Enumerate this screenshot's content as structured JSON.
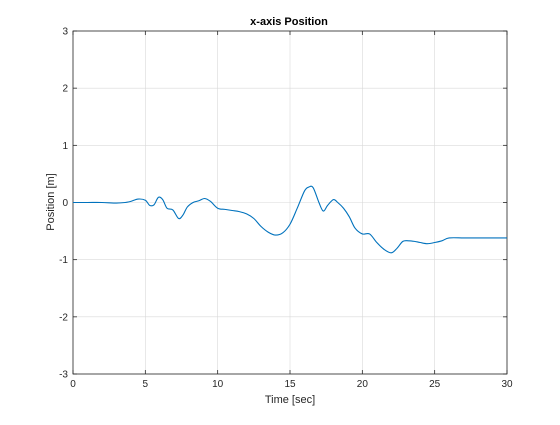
{
  "chart_data": {
    "type": "line",
    "title": "x-axis Position",
    "xlabel": "Time [sec]",
    "ylabel": "Position [m]",
    "xlim": [
      0,
      30
    ],
    "ylim": [
      -3,
      3
    ],
    "xticks": [
      "0",
      "5",
      "10",
      "15",
      "20",
      "25",
      "30"
    ],
    "yticks": [
      "-3",
      "-2",
      "-1",
      "0",
      "1",
      "2",
      "3"
    ],
    "grid": true,
    "line_color": "#0072BD",
    "series": [
      {
        "x": [
          0,
          1,
          2,
          3,
          3.6,
          4,
          4.5,
          5,
          5.3,
          5.6,
          5.9,
          6.2,
          6.5,
          6.9,
          7.3,
          7.6,
          7.9,
          8.3,
          8.7,
          9.1,
          9.5,
          10,
          10.5,
          11,
          11.5,
          12,
          12.5,
          13,
          13.5,
          14,
          14.5,
          15,
          15.5,
          16,
          16.3,
          16.6,
          17,
          17.3,
          17.6,
          18,
          18.3,
          18.7,
          19.1,
          19.5,
          20,
          20.5,
          21,
          21.5,
          22,
          22.4,
          22.8,
          23.2,
          23.6,
          24,
          24.5,
          25,
          25.5,
          26,
          27,
          28,
          29,
          30
        ],
        "y": [
          0,
          0,
          0,
          -0.01,
          0.0,
          0.02,
          0.06,
          0.04,
          -0.05,
          -0.04,
          0.09,
          0.05,
          -0.1,
          -0.13,
          -0.28,
          -0.22,
          -0.08,
          0.0,
          0.03,
          0.07,
          0.02,
          -0.1,
          -0.12,
          -0.14,
          -0.16,
          -0.2,
          -0.28,
          -0.42,
          -0.52,
          -0.57,
          -0.53,
          -0.38,
          -0.1,
          0.2,
          0.27,
          0.26,
          0.0,
          -0.15,
          -0.05,
          0.05,
          0.0,
          -0.1,
          -0.25,
          -0.45,
          -0.55,
          -0.55,
          -0.7,
          -0.82,
          -0.88,
          -0.8,
          -0.68,
          -0.67,
          -0.68,
          -0.7,
          -0.72,
          -0.7,
          -0.67,
          -0.62,
          -0.62,
          -0.62,
          -0.62,
          -0.62
        ]
      }
    ]
  }
}
